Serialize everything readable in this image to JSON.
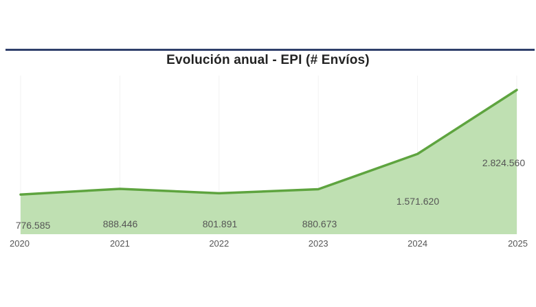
{
  "colors": {
    "rule": "#2f3f6b",
    "line": "#5ea43f",
    "area": "#bfe0b2",
    "grid": "#f2f2f2"
  },
  "chart_data": {
    "type": "area",
    "title": "Evolución anual - EPI (# Envíos)",
    "categories": [
      "2020",
      "2021",
      "2022",
      "2023",
      "2024",
      "2025"
    ],
    "values": [
      776585,
      888446,
      801891,
      880673,
      1571620,
      2824560
    ],
    "data_labels": [
      "776.585",
      "888.446",
      "801.891",
      "880.673",
      "1.571.620",
      "2.824.560"
    ],
    "xlabel": "",
    "ylabel": "",
    "ylim": [
      0,
      3200000
    ],
    "grid": true,
    "legend": "none"
  }
}
